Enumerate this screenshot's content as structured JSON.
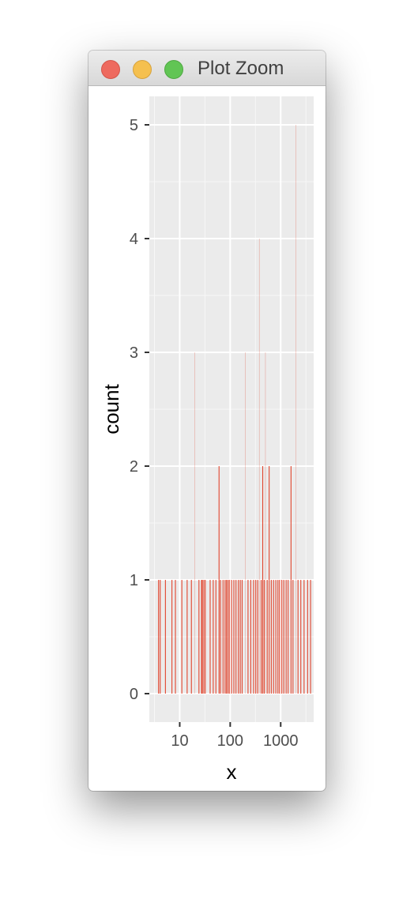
{
  "window": {
    "title": "Plot Zoom",
    "controls": [
      "close",
      "minimize",
      "zoom"
    ]
  },
  "chart_data": {
    "type": "bar",
    "title": "",
    "xlabel": "x",
    "ylabel": "count",
    "x_scale": "log10",
    "xlim": [
      2.5,
      4500
    ],
    "ylim": [
      -0.25,
      5.25
    ],
    "x_ticks": [
      10,
      100,
      1000
    ],
    "x_tick_labels": [
      "10",
      "100",
      "1000"
    ],
    "y_ticks": [
      0,
      1,
      2,
      3,
      4,
      5
    ],
    "y_tick_labels": [
      "0",
      "1",
      "2",
      "3",
      "4",
      "5"
    ],
    "bar_color": "#e0331a",
    "panel_background": "#ebebeb",
    "grid": true,
    "bars": [
      {
        "x": 3.8,
        "count": 1
      },
      {
        "x": 4.1,
        "count": 1
      },
      {
        "x": 5.2,
        "count": 1
      },
      {
        "x": 7.0,
        "count": 1
      },
      {
        "x": 8.2,
        "count": 1
      },
      {
        "x": 11,
        "count": 1
      },
      {
        "x": 14,
        "count": 1
      },
      {
        "x": 17,
        "count": 1
      },
      {
        "x": 20,
        "count": 3
      },
      {
        "x": 24,
        "count": 1
      },
      {
        "x": 27,
        "count": 1
      },
      {
        "x": 28,
        "count": 1
      },
      {
        "x": 30,
        "count": 1
      },
      {
        "x": 32,
        "count": 1
      },
      {
        "x": 40,
        "count": 1
      },
      {
        "x": 46,
        "count": 1
      },
      {
        "x": 52,
        "count": 1
      },
      {
        "x": 60,
        "count": 2
      },
      {
        "x": 64,
        "count": 1
      },
      {
        "x": 72,
        "count": 1
      },
      {
        "x": 79,
        "count": 1
      },
      {
        "x": 84,
        "count": 1
      },
      {
        "x": 90,
        "count": 1
      },
      {
        "x": 96,
        "count": 1
      },
      {
        "x": 106,
        "count": 1
      },
      {
        "x": 118,
        "count": 1
      },
      {
        "x": 130,
        "count": 1
      },
      {
        "x": 145,
        "count": 1
      },
      {
        "x": 158,
        "count": 1
      },
      {
        "x": 172,
        "count": 1
      },
      {
        "x": 200,
        "count": 3
      },
      {
        "x": 225,
        "count": 1
      },
      {
        "x": 255,
        "count": 1
      },
      {
        "x": 290,
        "count": 1
      },
      {
        "x": 320,
        "count": 1
      },
      {
        "x": 350,
        "count": 1
      },
      {
        "x": 380,
        "count": 4
      },
      {
        "x": 410,
        "count": 1
      },
      {
        "x": 440,
        "count": 2
      },
      {
        "x": 470,
        "count": 1
      },
      {
        "x": 500,
        "count": 3
      },
      {
        "x": 540,
        "count": 1
      },
      {
        "x": 590,
        "count": 2
      },
      {
        "x": 650,
        "count": 1
      },
      {
        "x": 720,
        "count": 1
      },
      {
        "x": 800,
        "count": 1
      },
      {
        "x": 880,
        "count": 1
      },
      {
        "x": 950,
        "count": 1
      },
      {
        "x": 1050,
        "count": 1
      },
      {
        "x": 1150,
        "count": 1
      },
      {
        "x": 1280,
        "count": 1
      },
      {
        "x": 1400,
        "count": 1
      },
      {
        "x": 1600,
        "count": 2
      },
      {
        "x": 1750,
        "count": 1
      },
      {
        "x": 2000,
        "count": 5
      },
      {
        "x": 2200,
        "count": 1
      },
      {
        "x": 2500,
        "count": 1
      },
      {
        "x": 2900,
        "count": 1
      },
      {
        "x": 3400,
        "count": 1
      },
      {
        "x": 3900,
        "count": 1
      }
    ]
  }
}
